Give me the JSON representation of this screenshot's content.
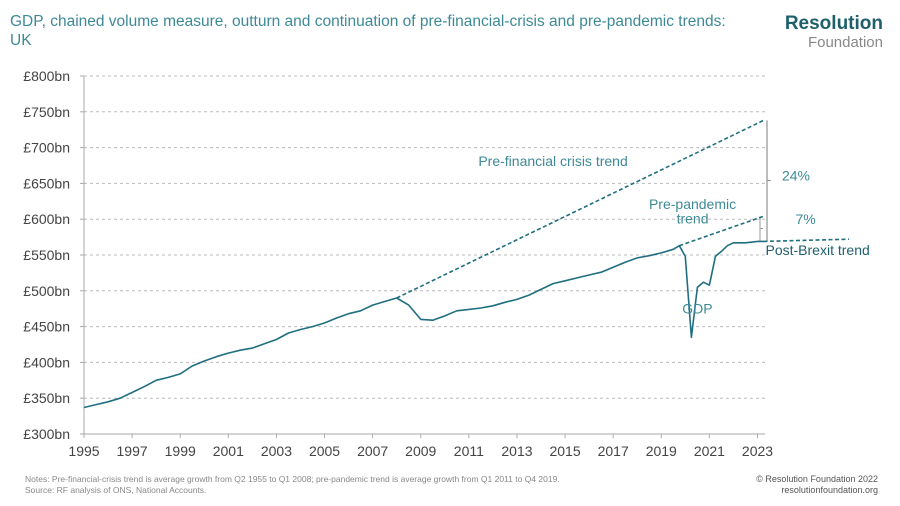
{
  "header": {
    "title": "GDP, chained volume measure, outturn and continuation of pre-financial-crisis and pre-pandemic trends: UK"
  },
  "logo": {
    "line1": "Resolution",
    "line2": "Foundation"
  },
  "footer": {
    "notes": "Notes: Pre-financial-crisis trend is average growth from Q2 1955 to Q1 2008; pre-pandemic trend is average growth from Q1 2011 to Q4 2019.",
    "source": "Source: RF analysis of ONS, National Accounts.",
    "copyright": "© Resolution Foundation 2022",
    "website": "resolutionfoundation.org"
  },
  "chart_data": {
    "type": "line",
    "title": "GDP, chained volume measure, outturn and continuation of pre-financial-crisis and pre-pandemic trends: UK",
    "xlabel": "",
    "ylabel": "",
    "xlim": [
      1995,
      2023
    ],
    "ylim": [
      300,
      800
    ],
    "grid": true,
    "x_ticks": [
      "1995",
      "1997",
      "1999",
      "2001",
      "2003",
      "2005",
      "2007",
      "2009",
      "2011",
      "2013",
      "2015",
      "2017",
      "2019",
      "2021",
      "2023"
    ],
    "y_ticks": [
      {
        "v": 300,
        "label": "£300bn"
      },
      {
        "v": 350,
        "label": "£350bn"
      },
      {
        "v": 400,
        "label": "£400bn"
      },
      {
        "v": 450,
        "label": "£450bn"
      },
      {
        "v": 500,
        "label": "£500bn"
      },
      {
        "v": 550,
        "label": "£550bn"
      },
      {
        "v": 600,
        "label": "£600bn"
      },
      {
        "v": 650,
        "label": "£650bn"
      },
      {
        "v": 700,
        "label": "£700bn"
      },
      {
        "v": 750,
        "label": "£750bn"
      },
      {
        "v": 800,
        "label": "£800bn"
      }
    ],
    "series": [
      {
        "name": "GDP",
        "style": "solid",
        "color": "#1f6f80",
        "points": [
          [
            1995,
            337
          ],
          [
            1995.5,
            341
          ],
          [
            1996,
            345
          ],
          [
            1996.5,
            350
          ],
          [
            1997,
            358
          ],
          [
            1997.5,
            366
          ],
          [
            1998,
            375
          ],
          [
            1998.5,
            379
          ],
          [
            1999,
            384
          ],
          [
            1999.5,
            395
          ],
          [
            2000,
            402
          ],
          [
            2000.5,
            408
          ],
          [
            2001,
            413
          ],
          [
            2001.5,
            417
          ],
          [
            2002,
            420
          ],
          [
            2002.5,
            426
          ],
          [
            2003,
            432
          ],
          [
            2003.5,
            441
          ],
          [
            2004,
            446
          ],
          [
            2004.5,
            450
          ],
          [
            2005,
            455
          ],
          [
            2005.5,
            462
          ],
          [
            2006,
            468
          ],
          [
            2006.5,
            472
          ],
          [
            2007,
            480
          ],
          [
            2007.5,
            485
          ],
          [
            2008,
            490
          ],
          [
            2008.5,
            480
          ],
          [
            2009,
            460
          ],
          [
            2009.5,
            459
          ],
          [
            2010,
            465
          ],
          [
            2010.5,
            472
          ],
          [
            2011,
            474
          ],
          [
            2011.5,
            476
          ],
          [
            2012,
            479
          ],
          [
            2012.5,
            484
          ],
          [
            2013,
            488
          ],
          [
            2013.5,
            494
          ],
          [
            2014,
            502
          ],
          [
            2014.5,
            510
          ],
          [
            2015,
            514
          ],
          [
            2015.5,
            518
          ],
          [
            2016,
            522
          ],
          [
            2016.5,
            526
          ],
          [
            2017,
            533
          ],
          [
            2017.5,
            540
          ],
          [
            2018,
            546
          ],
          [
            2018.5,
            549
          ],
          [
            2019,
            553
          ],
          [
            2019.5,
            558
          ],
          [
            2019.75,
            563
          ],
          [
            2020,
            548
          ],
          [
            2020.25,
            435
          ],
          [
            2020.5,
            505
          ],
          [
            2020.75,
            512
          ],
          [
            2021,
            508
          ],
          [
            2021.25,
            548
          ],
          [
            2021.5,
            555
          ],
          [
            2021.75,
            563
          ],
          [
            2022,
            567
          ],
          [
            2022.5,
            567
          ],
          [
            2023,
            569
          ],
          [
            2023.25,
            569
          ]
        ]
      },
      {
        "name": "Pre-financial crisis trend",
        "style": "dashed",
        "color": "#1f6f80",
        "points": [
          [
            2008,
            490
          ],
          [
            2023.25,
            738
          ]
        ]
      },
      {
        "name": "Pre-pandemic trend",
        "style": "dashed",
        "color": "#1f6f80",
        "points": [
          [
            2019.75,
            563
          ],
          [
            2023.25,
            604
          ]
        ]
      },
      {
        "name": "Post-Brexit trend",
        "style": "dashed",
        "color": "#1f6f80",
        "points": [
          [
            2023.25,
            569
          ],
          [
            2026.8,
            572
          ]
        ]
      }
    ],
    "annotations": [
      {
        "text": "Pre-financial crisis trend",
        "x": 2014.5,
        "y": 674
      },
      {
        "text": "Pre-pandemic",
        "x": 2020.3,
        "y": 614
      },
      {
        "text": "trend",
        "x": 2020.3,
        "y": 594
      },
      {
        "text": "GDP",
        "x": 2020.5,
        "y": 468
      },
      {
        "text": "24%",
        "x": 2024.6,
        "y": 654
      },
      {
        "text": "7%",
        "x": 2025,
        "y": 593
      },
      {
        "text": "Post-Brexit trend",
        "x": 2025.5,
        "y": 550
      }
    ],
    "gaps": [
      {
        "label": "24%",
        "from": 569,
        "to": 738
      },
      {
        "label": "7%",
        "from": 569,
        "to": 604
      }
    ]
  }
}
